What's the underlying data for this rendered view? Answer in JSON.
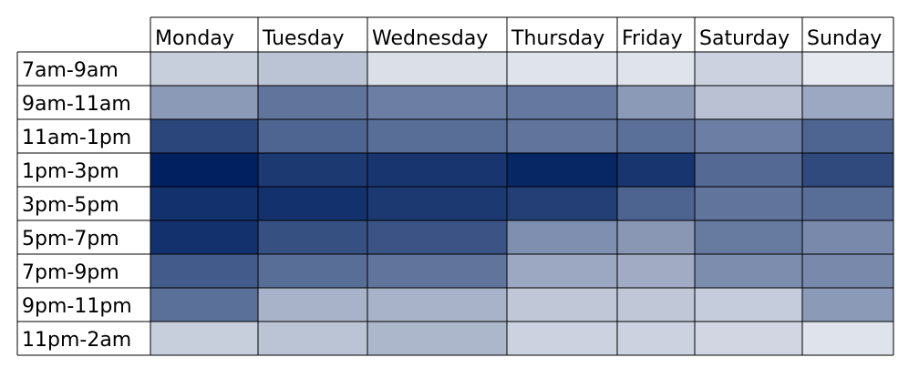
{
  "chart_data": {
    "type": "heatmap",
    "title": "",
    "xlabel": "",
    "ylabel": "",
    "columns": [
      "Monday",
      "Tuesday",
      "Wednesday",
      "Thursday",
      "Friday",
      "Saturday",
      "Sunday"
    ],
    "rows": [
      "7am-9am",
      "9am-11am",
      "11am-1pm",
      "1pm-3pm",
      "3pm-5pm",
      "5pm-7pm",
      "7pm-9pm",
      "9pm-11pm",
      "11pm-2am"
    ],
    "values": [
      [
        0.17,
        0.22,
        0.09,
        0.07,
        0.07,
        0.15,
        0.04
      ],
      [
        0.42,
        0.6,
        0.55,
        0.58,
        0.42,
        0.23,
        0.35
      ],
      [
        0.82,
        0.67,
        0.63,
        0.6,
        0.62,
        0.55,
        0.67
      ],
      [
        1.0,
        0.88,
        0.9,
        0.97,
        0.9,
        0.65,
        0.8
      ],
      [
        0.92,
        0.92,
        0.88,
        0.85,
        0.68,
        0.6,
        0.63
      ],
      [
        0.92,
        0.77,
        0.75,
        0.47,
        0.43,
        0.57,
        0.5
      ],
      [
        0.72,
        0.63,
        0.6,
        0.35,
        0.33,
        0.48,
        0.5
      ],
      [
        0.62,
        0.3,
        0.3,
        0.2,
        0.2,
        0.18,
        0.42
      ],
      [
        0.17,
        0.22,
        0.28,
        0.15,
        0.15,
        0.13,
        0.07
      ]
    ],
    "color_scale": {
      "low": "#ffffff",
      "high": "#002060"
    }
  }
}
